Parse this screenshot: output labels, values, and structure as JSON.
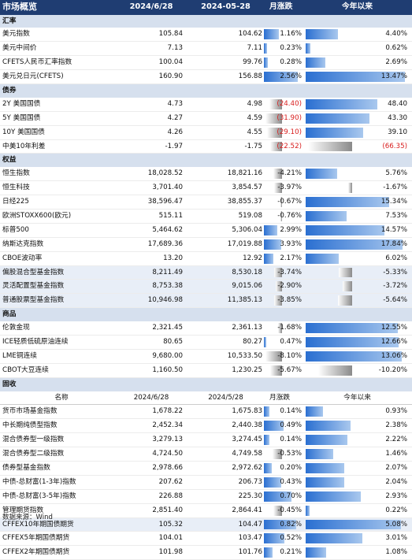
{
  "header": {
    "title": "市场概览",
    "col1": "2024/6/28",
    "col2": "2024-05-28",
    "col3": "月涨跌",
    "col4": "今年以来"
  },
  "sections": [
    {
      "name": "汇率",
      "rows": [
        {
          "name": "美元指数",
          "v1": "105.84",
          "v2": "104.62",
          "mom": "1.16%",
          "ytd": "4.40%",
          "mom_val": 1.16,
          "ytd_val": 4.4,
          "mom_red": false,
          "ytd_red": false
        },
        {
          "name": "美元中间价",
          "v1": "7.13",
          "v2": "7.11",
          "mom": "0.23%",
          "ytd": "0.62%",
          "mom_val": 0.23,
          "ytd_val": 0.62,
          "mom_red": false,
          "ytd_red": false
        },
        {
          "name": "CFETS人民币汇率指数",
          "v1": "100.04",
          "v2": "99.76",
          "mom": "0.28%",
          "ytd": "2.69%",
          "mom_val": 0.28,
          "ytd_val": 2.69,
          "mom_red": false,
          "ytd_red": false
        },
        {
          "name": "美元兑日元(CFETS)",
          "v1": "160.90",
          "v2": "156.88",
          "mom": "2.56%",
          "ytd": "13.47%",
          "mom_val": 2.56,
          "ytd_val": 13.47,
          "mom_red": false,
          "ytd_red": false
        }
      ]
    },
    {
      "name": "债券",
      "rows": [
        {
          "name": "2Y 美国国债",
          "v1": "4.73",
          "v2": "4.98",
          "mom": "(24.40)",
          "ytd": "48.40",
          "mom_val": -24.4,
          "ytd_val": 48.4,
          "mom_red": true,
          "ytd_red": false
        },
        {
          "name": "5Y 美国国债",
          "v1": "4.27",
          "v2": "4.59",
          "mom": "(31.90)",
          "ytd": "43.30",
          "mom_val": -31.9,
          "ytd_val": 43.3,
          "mom_red": true,
          "ytd_red": false
        },
        {
          "name": "10Y 美国国债",
          "v1": "4.26",
          "v2": "4.55",
          "mom": "(29.10)",
          "ytd": "39.10",
          "mom_val": -29.1,
          "ytd_val": 39.1,
          "mom_red": true,
          "ytd_red": false
        },
        {
          "name": "中美10年利差",
          "v1": "-1.97",
          "v2": "-1.75",
          "mom": "(22.52)",
          "ytd": "(66.35)",
          "mom_val": -22.52,
          "ytd_val": -66.35,
          "mom_red": true,
          "ytd_red": true
        }
      ]
    },
    {
      "name": "权益",
      "rows": [
        {
          "name": "恒生指数",
          "v1": "18,028.52",
          "v2": "18,821.16",
          "mom": "-4.21%",
          "ytd": "5.76%",
          "mom_val": -4.21,
          "ytd_val": 5.76,
          "mom_red": false,
          "ytd_red": false
        },
        {
          "name": "恒生科技",
          "v1": "3,701.40",
          "v2": "3,854.57",
          "mom": "-3.97%",
          "ytd": "-1.67%",
          "mom_val": -3.97,
          "ytd_val": -1.67,
          "mom_red": false,
          "ytd_red": false
        },
        {
          "name": "日经225",
          "v1": "38,596.47",
          "v2": "38,855.37",
          "mom": "-0.67%",
          "ytd": "15.34%",
          "mom_val": -0.67,
          "ytd_val": 15.34,
          "mom_red": false,
          "ytd_red": false
        },
        {
          "name": "欧洲STOXX600(欧元)",
          "v1": "515.11",
          "v2": "519.08",
          "mom": "-0.76%",
          "ytd": "7.53%",
          "mom_val": -0.76,
          "ytd_val": 7.53,
          "mom_red": false,
          "ytd_red": false
        },
        {
          "name": "标普500",
          "v1": "5,464.62",
          "v2": "5,306.04",
          "mom": "2.99%",
          "ytd": "14.57%",
          "mom_val": 2.99,
          "ytd_val": 14.57,
          "mom_red": false,
          "ytd_red": false
        },
        {
          "name": "纳斯达克指数",
          "v1": "17,689.36",
          "v2": "17,019.88",
          "mom": "3.93%",
          "ytd": "17.84%",
          "mom_val": 3.93,
          "ytd_val": 17.84,
          "mom_red": false,
          "ytd_red": false
        },
        {
          "name": "CBOE波动率",
          "v1": "13.20",
          "v2": "12.92",
          "mom": "2.17%",
          "ytd": "6.02%",
          "mom_val": 2.17,
          "ytd_val": 6.02,
          "mom_red": false,
          "ytd_red": false
        },
        {
          "name": "偏股混合型基金指数",
          "v1": "8,211.49",
          "v2": "8,530.18",
          "mom": "-3.74%",
          "ytd": "-5.33%",
          "mom_val": -3.74,
          "ytd_val": -5.33,
          "mom_red": false,
          "ytd_red": false,
          "shaded": true
        },
        {
          "name": "灵活配置型基金指数",
          "v1": "8,753.38",
          "v2": "9,015.06",
          "mom": "-2.90%",
          "ytd": "-3.72%",
          "mom_val": -2.9,
          "ytd_val": -3.72,
          "mom_red": false,
          "ytd_red": false,
          "shaded": true
        },
        {
          "name": "普通股票型基金指数",
          "v1": "10,946.98",
          "v2": "11,385.13",
          "mom": "-3.85%",
          "ytd": "-5.64%",
          "mom_val": -3.85,
          "ytd_val": -5.64,
          "mom_red": false,
          "ytd_red": false,
          "shaded": true
        }
      ]
    },
    {
      "name": "商品",
      "rows": [
        {
          "name": "伦敦金现",
          "v1": "2,321.45",
          "v2": "2,361.13",
          "mom": "-1.68%",
          "ytd": "12.55%",
          "mom_val": -1.68,
          "ytd_val": 12.55,
          "mom_red": false,
          "ytd_red": false
        },
        {
          "name": "ICE轻质低硫原油连续",
          "v1": "80.65",
          "v2": "80.27",
          "mom": "0.47%",
          "ytd": "12.66%",
          "mom_val": 0.47,
          "ytd_val": 12.66,
          "mom_red": false,
          "ytd_red": false
        },
        {
          "name": "LME铜连续",
          "v1": "9,680.00",
          "v2": "10,533.50",
          "mom": "-8.10%",
          "ytd": "13.06%",
          "mom_val": -8.1,
          "ytd_val": 13.06,
          "mom_red": false,
          "ytd_red": false
        },
        {
          "name": "CBOT大豆连续",
          "v1": "1,160.50",
          "v2": "1,230.25",
          "mom": "-5.67%",
          "ytd": "-10.20%",
          "mom_val": -5.67,
          "ytd_val": -10.2,
          "mom_red": false,
          "ytd_red": false
        }
      ]
    },
    {
      "name": "固收",
      "subheader": {
        "name": "名称",
        "col1": "2024/6/28",
        "col2": "2024/5/28",
        "col3": "月涨跌",
        "col4": "今年以来"
      },
      "rows": [
        {
          "name": "货币市场基金指数",
          "v1": "1,678.22",
          "v2": "1,675.83",
          "mom": "0.14%",
          "ytd": "0.93%",
          "mom_val": 0.14,
          "ytd_val": 0.93,
          "mom_red": false,
          "ytd_red": false
        },
        {
          "name": "中长期纯债型指数",
          "v1": "2,452.34",
          "v2": "2,440.38",
          "mom": "0.49%",
          "ytd": "2.38%",
          "mom_val": 0.49,
          "ytd_val": 2.38,
          "mom_red": false,
          "ytd_red": false
        },
        {
          "name": "混合债券型一级指数",
          "v1": "3,279.13",
          "v2": "3,274.45",
          "mom": "0.14%",
          "ytd": "2.22%",
          "mom_val": 0.14,
          "ytd_val": 2.22,
          "mom_red": false,
          "ytd_red": false
        },
        {
          "name": "混合债券型二级指数",
          "v1": "4,724.50",
          "v2": "4,749.58",
          "mom": "-0.53%",
          "ytd": "1.46%",
          "mom_val": -0.53,
          "ytd_val": 1.46,
          "mom_red": false,
          "ytd_red": false
        },
        {
          "name": "债券型基金指数",
          "v1": "2,978.66",
          "v2": "2,972.62",
          "mom": "0.20%",
          "ytd": "2.07%",
          "mom_val": 0.2,
          "ytd_val": 2.07,
          "mom_red": false,
          "ytd_red": false
        },
        {
          "name": "中债-总财富(1-3年)指数",
          "v1": "207.62",
          "v2": "206.73",
          "mom": "0.43%",
          "ytd": "2.04%",
          "mom_val": 0.43,
          "ytd_val": 2.04,
          "mom_red": false,
          "ytd_red": false
        },
        {
          "name": "中债-总财富(3-5年)指数",
          "v1": "226.88",
          "v2": "225.30",
          "mom": "0.70%",
          "ytd": "2.93%",
          "mom_val": 0.7,
          "ytd_val": 2.93,
          "mom_red": false,
          "ytd_red": false
        },
        {
          "name": "管理期货指数",
          "v1": "2,851.40",
          "v2": "2,864.41",
          "mom": "-0.45%",
          "ytd": "0.22%",
          "mom_val": -0.45,
          "ytd_val": 0.22,
          "mom_red": false,
          "ytd_red": false
        },
        {
          "name": "CFFEX10年期国债期货",
          "v1": "105.32",
          "v2": "104.47",
          "mom": "0.82%",
          "ytd": "5.08%",
          "mom_val": 0.82,
          "ytd_val": 5.08,
          "mom_red": false,
          "ytd_red": false,
          "shaded": true
        },
        {
          "name": "CFFEX5年期国债期货",
          "v1": "104.01",
          "v2": "103.47",
          "mom": "0.52%",
          "ytd": "3.01%",
          "mom_val": 0.52,
          "ytd_val": 3.01,
          "mom_red": false,
          "ytd_red": false
        },
        {
          "name": "CFFEX2年期国债期货",
          "v1": "101.98",
          "v2": "101.76",
          "mom": "0.21%",
          "ytd": "1.08%",
          "mom_val": 0.21,
          "ytd_val": 1.08,
          "mom_red": false,
          "ytd_red": false
        }
      ]
    }
  ],
  "footer": "数据来源：Wind"
}
